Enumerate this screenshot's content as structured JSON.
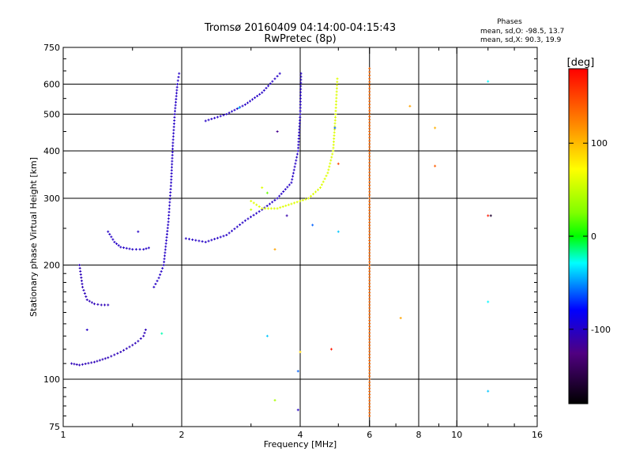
{
  "chart_data": {
    "type": "scatter",
    "title": "Tromsø 20160409 04:14:00-04:15:43",
    "subtitle": "RwPretec (8p)",
    "xlabel": "Frequency [MHz]",
    "ylabel": "Stationary phase Virtual Height [km]",
    "x_scale": "log2",
    "y_scale": "log",
    "xlim": [
      1,
      16
    ],
    "ylim": [
      75,
      750
    ],
    "x_ticks": [
      1,
      2,
      4,
      6,
      8,
      10,
      16
    ],
    "y_ticks": [
      75,
      100,
      200,
      300,
      400,
      500,
      600,
      750
    ],
    "x_grid": [
      2,
      4,
      6,
      8,
      10
    ],
    "y_grid": [
      100,
      200,
      300,
      400,
      500,
      600
    ],
    "stats": {
      "title": "Phases",
      "line_o": "mean, sd,O: -98.5, 13.7",
      "line_x": "mean, sd,X:  90.3, 19.9"
    },
    "colorbar": {
      "label": "[deg]",
      "range": [
        -180,
        180
      ],
      "ticks": [
        100,
        0,
        -100
      ]
    },
    "traces": [
      {
        "phase": -105,
        "points": [
          [
            1.05,
            110
          ],
          [
            1.1,
            109
          ],
          [
            1.2,
            111
          ],
          [
            1.3,
            114
          ],
          [
            1.4,
            118
          ],
          [
            1.5,
            123
          ],
          [
            1.55,
            126
          ],
          [
            1.6,
            130
          ],
          [
            1.62,
            135
          ]
        ]
      },
      {
        "phase": -105,
        "points": [
          [
            1.1,
            200
          ],
          [
            1.12,
            175
          ],
          [
            1.15,
            162
          ],
          [
            1.2,
            158
          ],
          [
            1.25,
            157
          ],
          [
            1.3,
            157
          ]
        ]
      },
      {
        "phase": -100,
        "points": [
          [
            1.3,
            245
          ],
          [
            1.35,
            230
          ],
          [
            1.4,
            223
          ],
          [
            1.5,
            220
          ],
          [
            1.6,
            220
          ],
          [
            1.65,
            222
          ]
        ]
      },
      {
        "phase": -100,
        "points": [
          [
            1.7,
            175
          ],
          [
            1.75,
            185
          ],
          [
            1.8,
            200
          ],
          [
            1.85,
            260
          ],
          [
            1.88,
            330
          ],
          [
            1.9,
            420
          ],
          [
            1.92,
            500
          ],
          [
            1.95,
            600
          ],
          [
            1.97,
            640
          ]
        ]
      },
      {
        "phase": -100,
        "points": [
          [
            2.05,
            235
          ],
          [
            2.3,
            230
          ],
          [
            2.6,
            240
          ],
          [
            2.9,
            262
          ],
          [
            3.2,
            280
          ],
          [
            3.5,
            300
          ],
          [
            3.8,
            330
          ],
          [
            3.95,
            400
          ],
          [
            4.0,
            500
          ],
          [
            4.02,
            640
          ]
        ]
      },
      {
        "phase": -100,
        "points": [
          [
            2.3,
            480
          ],
          [
            2.6,
            500
          ],
          [
            2.9,
            530
          ],
          [
            3.2,
            570
          ],
          [
            3.4,
            610
          ],
          [
            3.55,
            640
          ]
        ]
      },
      {
        "phase": 60,
        "points": [
          [
            3.0,
            295
          ],
          [
            3.2,
            282
          ],
          [
            3.5,
            282
          ],
          [
            3.8,
            290
          ],
          [
            4.2,
            300
          ],
          [
            4.5,
            320
          ],
          [
            4.7,
            350
          ],
          [
            4.85,
            400
          ],
          [
            4.92,
            500
          ],
          [
            4.97,
            620
          ]
        ]
      },
      {
        "phase": 135,
        "points": [
          [
            6.0,
            80
          ],
          [
            6.0,
            100
          ],
          [
            6.0,
            130
          ],
          [
            6.0,
            160
          ],
          [
            6.0,
            200
          ],
          [
            6.0,
            250
          ],
          [
            6.0,
            300
          ],
          [
            6.0,
            380
          ],
          [
            6.0,
            450
          ],
          [
            6.0,
            520
          ],
          [
            6.0,
            620
          ],
          [
            6.0,
            660
          ]
        ]
      }
    ],
    "scatter": [
      {
        "x": 1.15,
        "y": 135,
        "phase": -100
      },
      {
        "x": 1.55,
        "y": 245,
        "phase": -100
      },
      {
        "x": 1.78,
        "y": 132,
        "phase": -20
      },
      {
        "x": 3.3,
        "y": 130,
        "phase": -40
      },
      {
        "x": 3.45,
        "y": 88,
        "phase": 40
      },
      {
        "x": 3.45,
        "y": 220,
        "phase": 110
      },
      {
        "x": 3.7,
        "y": 270,
        "phase": -110
      },
      {
        "x": 4.0,
        "y": 118,
        "phase": 90
      },
      {
        "x": 3.95,
        "y": 105,
        "phase": -60
      },
      {
        "x": 3.95,
        "y": 83,
        "phase": -100
      },
      {
        "x": 4.3,
        "y": 255,
        "phase": -60
      },
      {
        "x": 4.8,
        "y": 120,
        "phase": 170
      },
      {
        "x": 5.0,
        "y": 245,
        "phase": -40
      },
      {
        "x": 5.0,
        "y": 370,
        "phase": 150
      },
      {
        "x": 7.2,
        "y": 145,
        "phase": 110
      },
      {
        "x": 7.6,
        "y": 525,
        "phase": 110
      },
      {
        "x": 8.8,
        "y": 460,
        "phase": 105
      },
      {
        "x": 8.8,
        "y": 365,
        "phase": 140
      },
      {
        "x": 12.0,
        "y": 610,
        "phase": -30
      },
      {
        "x": 12.0,
        "y": 270,
        "phase": 170
      },
      {
        "x": 12.2,
        "y": 270,
        "phase": -160
      },
      {
        "x": 12.0,
        "y": 160,
        "phase": -30
      },
      {
        "x": 12.0,
        "y": 93,
        "phase": -40
      },
      {
        "x": 3.2,
        "y": 320,
        "phase": 60
      },
      {
        "x": 3.3,
        "y": 310,
        "phase": 20
      },
      {
        "x": 2.8,
        "y": 520,
        "phase": -40
      },
      {
        "x": 3.5,
        "y": 450,
        "phase": -120
      },
      {
        "x": 4.9,
        "y": 460,
        "phase": -60
      },
      {
        "x": 3.0,
        "y": 280,
        "phase": 50
      }
    ]
  }
}
